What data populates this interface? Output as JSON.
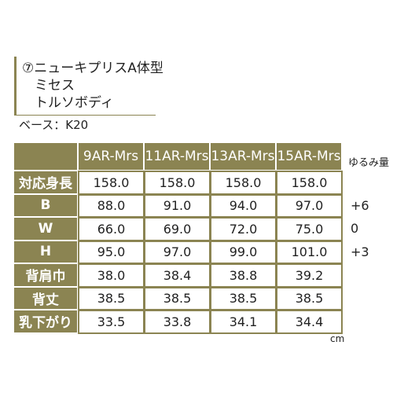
{
  "header": {
    "title": "⑦ニューキプリスA体型",
    "subtitle": "ミセス",
    "body_type": "トルソボディ",
    "base": "ベース：K20"
  },
  "table": {
    "columns": [
      "9AR-Mrs",
      "11AR-Mrs",
      "13AR-Mrs",
      "15AR-Mrs"
    ],
    "allowance_header": "ゆるみ量",
    "rows": [
      {
        "label": "対応身長",
        "values": [
          "158.0",
          "158.0",
          "158.0",
          "158.0"
        ],
        "allowance": null
      },
      {
        "label": "B",
        "values": [
          "88.0",
          "91.0",
          "94.0",
          "97.0"
        ],
        "allowance": "+6"
      },
      {
        "label": "W",
        "values": [
          "66.0",
          "69.0",
          "72.0",
          "75.0"
        ],
        "allowance": "0"
      },
      {
        "label": "H",
        "values": [
          "95.0",
          "97.0",
          "99.0",
          "101.0"
        ],
        "allowance": "+3"
      },
      {
        "label": "背肩巾",
        "values": [
          "38.0",
          "38.4",
          "38.8",
          "39.2"
        ],
        "allowance": null
      },
      {
        "label": "背丈",
        "values": [
          "38.5",
          "38.5",
          "38.5",
          "38.5"
        ],
        "allowance": null
      },
      {
        "label": "乳下がり",
        "values": [
          "33.5",
          "33.8",
          "34.1",
          "34.4"
        ],
        "allowance": null
      }
    ],
    "unit": "cm"
  }
}
